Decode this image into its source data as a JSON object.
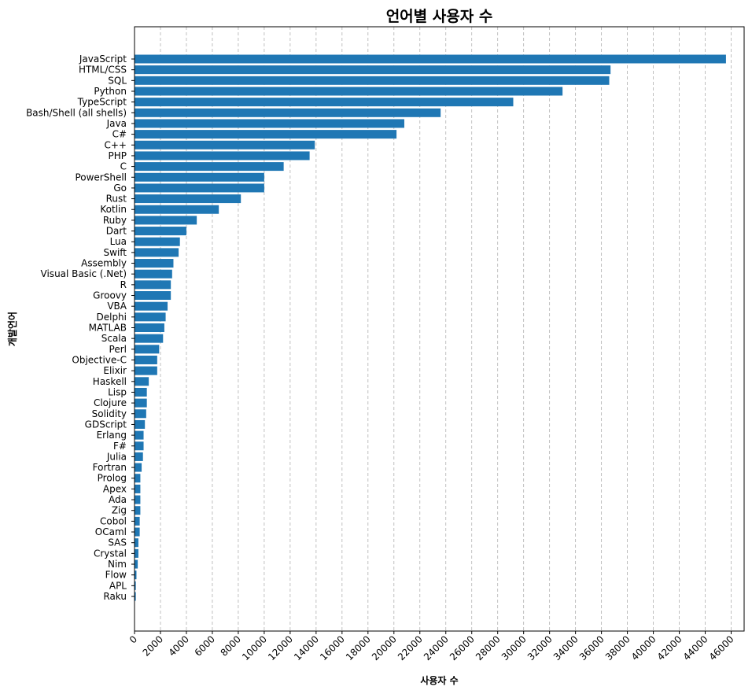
{
  "chart_data": {
    "type": "bar",
    "orientation": "horizontal",
    "title": "언어별 사용자 수",
    "xlabel": "사용자 수",
    "ylabel": "개발언어",
    "xlim": [
      0,
      47000
    ],
    "x_ticks": [
      0,
      2000,
      4000,
      6000,
      8000,
      10000,
      12000,
      14000,
      16000,
      18000,
      20000,
      22000,
      24000,
      26000,
      28000,
      30000,
      32000,
      34000,
      36000,
      38000,
      40000,
      42000,
      44000,
      46000
    ],
    "grid": "x-dashed",
    "bar_color": "#1f77b4",
    "categories": [
      "JavaScript",
      "HTML/CSS",
      "SQL",
      "Python",
      "TypeScript",
      "Bash/Shell (all shells)",
      "Java",
      "C#",
      "C++",
      "PHP",
      "C",
      "PowerShell",
      "Go",
      "Rust",
      "Kotlin",
      "Ruby",
      "Dart",
      "Lua",
      "Swift",
      "Assembly",
      "Visual Basic (.Net)",
      "R",
      "Groovy",
      "VBA",
      "Delphi",
      "MATLAB",
      "Scala",
      "Perl",
      "Objective-C",
      "Elixir",
      "Haskell",
      "Lisp",
      "Clojure",
      "Solidity",
      "GDScript",
      "Erlang",
      "F#",
      "Julia",
      "Fortran",
      "Prolog",
      "Apex",
      "Ada",
      "Zig",
      "Cobol",
      "OCaml",
      "SAS",
      "Crystal",
      "Nim",
      "Flow",
      "APL",
      "Raku"
    ],
    "values": [
      45600,
      36700,
      36600,
      33000,
      29200,
      23600,
      20800,
      20200,
      13900,
      13500,
      11500,
      10000,
      10000,
      8200,
      6500,
      4800,
      4000,
      3500,
      3400,
      3000,
      2900,
      2800,
      2800,
      2550,
      2400,
      2300,
      2200,
      1900,
      1750,
      1750,
      1100,
      950,
      950,
      900,
      800,
      700,
      700,
      650,
      550,
      450,
      450,
      450,
      450,
      400,
      400,
      300,
      300,
      250,
      150,
      100,
      100
    ]
  }
}
